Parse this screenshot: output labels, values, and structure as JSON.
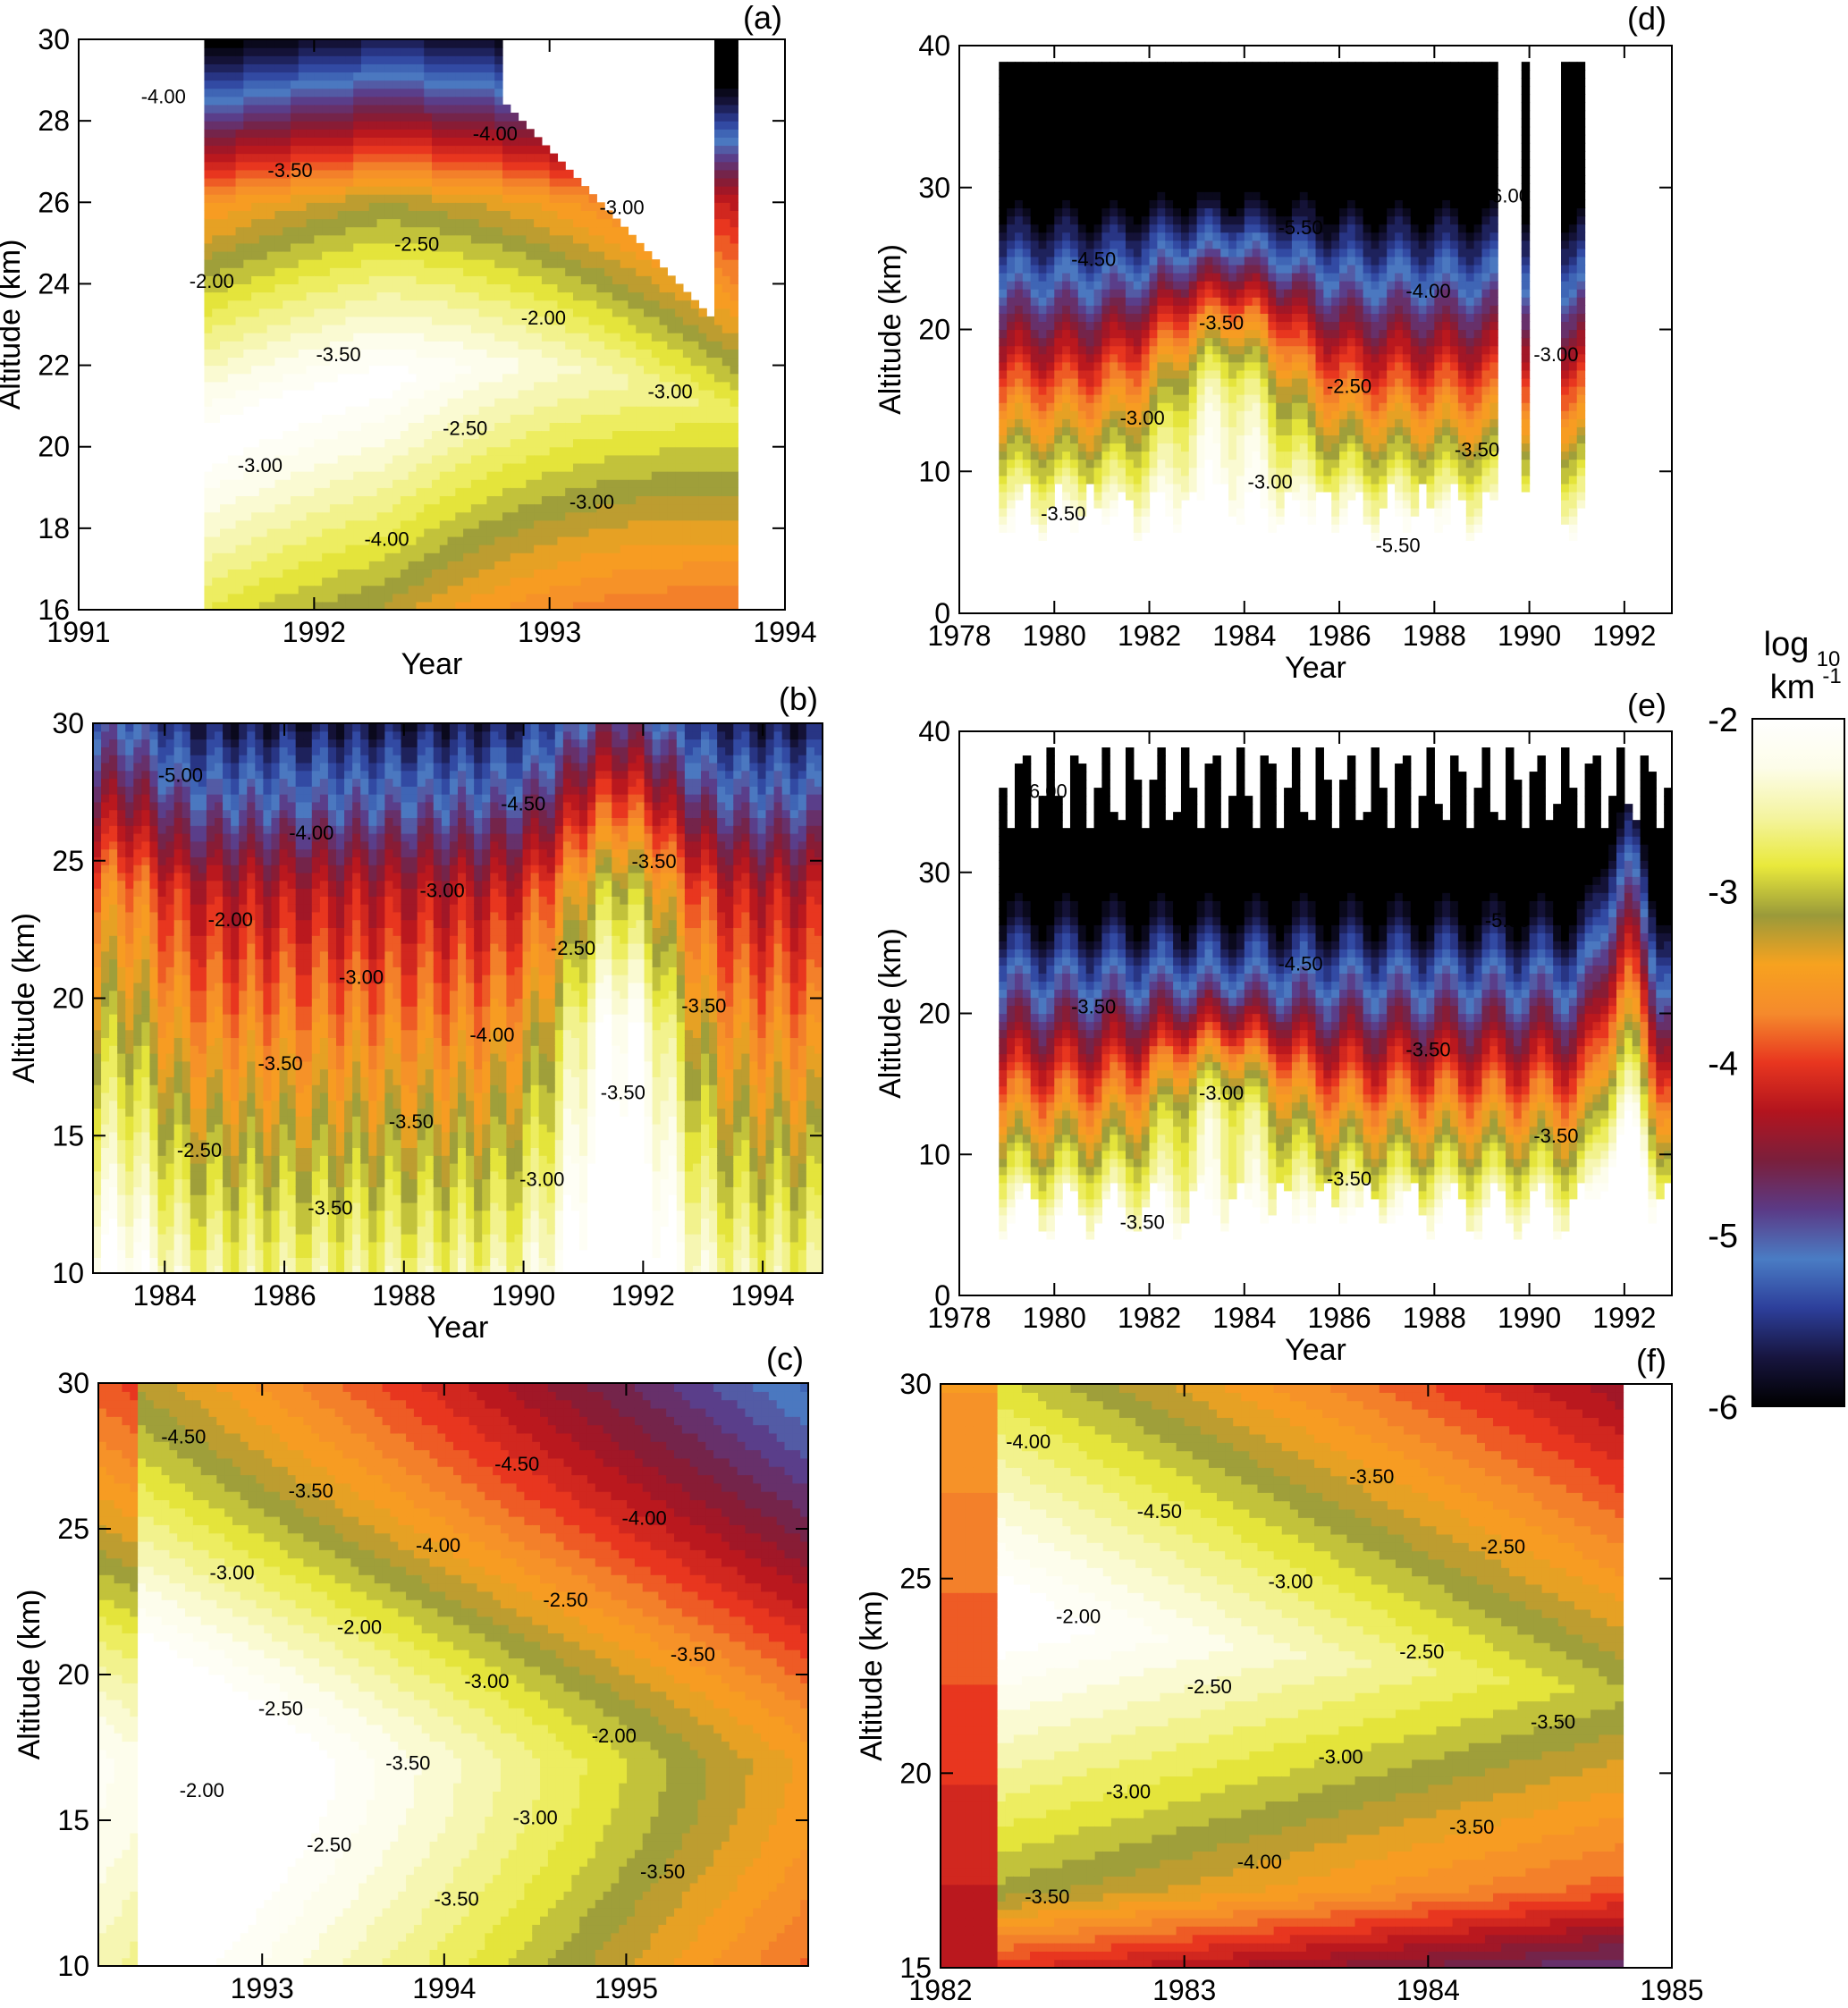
{
  "colorbar": {
    "title": "log",
    "title_sub": "10",
    "unit": "km",
    "unit_sup": "-1",
    "ticks": [
      "-2",
      "-3",
      "-4",
      "-5",
      "-6"
    ],
    "range": [
      -6,
      -2
    ],
    "stops": [
      "#000000",
      "#17153f",
      "#2d3f9b",
      "#4a7cc4",
      "#5b3a86",
      "#7a1f3c",
      "#b3141e",
      "#e8361f",
      "#f58a2c",
      "#f7a21f",
      "#9a9a3a",
      "#e9e93b",
      "#f4f4a0",
      "#fdfde9",
      "#ffffff"
    ]
  },
  "chart_data": [
    {
      "panel": "(a)",
      "type": "heatmap",
      "xlabel": "Year",
      "ylabel": "Altitude (km)",
      "xlim": [
        1991,
        1994
      ],
      "ylim": [
        16,
        30
      ],
      "xticks": [
        "1991",
        "1992",
        "1993",
        "1994"
      ],
      "yticks": [
        "16",
        "18",
        "20",
        "22",
        "24",
        "26",
        "28",
        "30"
      ],
      "contour_labels": [
        "-4.00",
        "-4.00",
        "-3.50",
        "-3.00",
        "-2.50",
        "-2.00",
        "-2.00",
        "-3.50",
        "-3.00",
        "-2.50",
        "-3.00",
        "-3.00",
        "-4.00"
      ]
    },
    {
      "panel": "(b)",
      "type": "heatmap",
      "xlabel": "Year",
      "ylabel": "Altitude (km)",
      "xlim": [
        1982.8,
        1995
      ],
      "ylim": [
        10,
        30
      ],
      "xticks": [
        "1984",
        "1986",
        "1988",
        "1990",
        "1992",
        "1994"
      ],
      "yticks": [
        "10",
        "15",
        "20",
        "25",
        "30"
      ],
      "contour_labels": [
        "-5.00",
        "-4.50",
        "-4.00",
        "-3.50",
        "-3.00",
        "-2.00",
        "-2.50",
        "-3.00",
        "-3.50",
        "-4.00",
        "-3.50",
        "-3.50",
        "-3.50",
        "-2.50",
        "-3.00",
        "-3.50"
      ]
    },
    {
      "panel": "(c)",
      "type": "heatmap",
      "xlabel": "Year",
      "ylabel": "Altitude (km)",
      "xlim": [
        1992.1,
        1996
      ],
      "ylim": [
        10,
        30
      ],
      "xticks": [
        "1993",
        "1994",
        "1995"
      ],
      "yticks": [
        "10",
        "15",
        "20",
        "25",
        "30"
      ],
      "contour_labels": [
        "-4.50",
        "-4.50",
        "-3.50",
        "-4.00",
        "-4.00",
        "-3.00",
        "-2.50",
        "-2.00",
        "-3.50",
        "-3.00",
        "-2.50",
        "-2.00",
        "-3.50",
        "-2.00",
        "-3.00",
        "-2.50",
        "-3.50",
        "-3.50"
      ]
    },
    {
      "panel": "(d)",
      "type": "heatmap",
      "xlabel": "Year",
      "ylabel": "Altitude (km)",
      "xlim": [
        1978,
        1993
      ],
      "ylim": [
        0,
        40
      ],
      "xticks": [
        "1978",
        "1980",
        "1982",
        "1984",
        "1986",
        "1988",
        "1990",
        "1992"
      ],
      "yticks": [
        "0",
        "10",
        "20",
        "30",
        "40"
      ],
      "contour_labels": [
        "-5.50",
        "-5.50",
        "-6.00",
        "-6.00",
        "-5.50",
        "-4.50",
        "-4.00",
        "-3.50",
        "-3.00",
        "-2.50",
        "-3.00",
        "-3.50",
        "-3.00",
        "-3.50",
        "-5.50"
      ]
    },
    {
      "panel": "(e)",
      "type": "heatmap",
      "xlabel": "Year",
      "ylabel": "Altitude (km)",
      "xlim": [
        1978,
        1993
      ],
      "ylim": [
        0,
        40
      ],
      "xticks": [
        "1978",
        "1980",
        "1982",
        "1984",
        "1986",
        "1988",
        "1990",
        "1992"
      ],
      "yticks": [
        "0",
        "10",
        "20",
        "30",
        "40"
      ],
      "contour_labels": [
        "-6.00",
        "-6.00",
        "-5.50",
        "-5.00",
        "-4.50",
        "-3.50",
        "-3.50",
        "-3.00",
        "-3.50",
        "-3.50",
        "-3.50"
      ]
    },
    {
      "panel": "(f)",
      "type": "heatmap",
      "xlabel": "Year",
      "ylabel": "Altitude (km)",
      "xlim": [
        1982,
        1985
      ],
      "ylim": [
        15,
        30
      ],
      "xticks": [
        "1982",
        "1983",
        "1984",
        "1985"
      ],
      "yticks": [
        "15",
        "20",
        "25",
        "30"
      ],
      "contour_labels": [
        "-4.00",
        "-3.50",
        "-4.50",
        "-2.50",
        "-3.00",
        "-2.00",
        "-2.50",
        "-2.50",
        "-3.50",
        "-3.00",
        "-3.00",
        "-3.50",
        "-4.00",
        "-3.50"
      ]
    }
  ]
}
